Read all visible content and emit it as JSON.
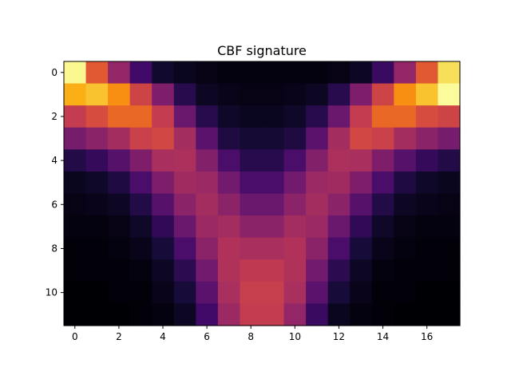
{
  "chart_data": {
    "type": "heatmap",
    "title": "CBF signature",
    "xlabel": "",
    "ylabel": "",
    "colormap": "inferno",
    "value_range": [
      0,
      1
    ],
    "x_ticks": [
      0,
      2,
      4,
      6,
      8,
      10,
      12,
      14,
      16
    ],
    "y_ticks": [
      0,
      2,
      4,
      6,
      8,
      10
    ],
    "x_tick_labels": [
      "0",
      "2",
      "4",
      "6",
      "8",
      "10",
      "12",
      "14",
      "16"
    ],
    "y_tick_labels": [
      "0",
      "2",
      "4",
      "6",
      "8",
      "10"
    ],
    "columns": 18,
    "rows": 12,
    "values": [
      [
        0.98,
        0.62,
        0.4,
        0.2,
        0.08,
        0.05,
        0.03,
        0.02,
        0.02,
        0.02,
        0.02,
        0.02,
        0.03,
        0.06,
        0.18,
        0.4,
        0.62,
        0.92
      ],
      [
        0.82,
        0.86,
        0.75,
        0.55,
        0.35,
        0.14,
        0.06,
        0.04,
        0.03,
        0.03,
        0.04,
        0.06,
        0.14,
        0.35,
        0.55,
        0.75,
        0.86,
        0.99
      ],
      [
        0.52,
        0.58,
        0.66,
        0.66,
        0.52,
        0.3,
        0.14,
        0.07,
        0.05,
        0.05,
        0.07,
        0.14,
        0.3,
        0.52,
        0.66,
        0.66,
        0.58,
        0.55
      ],
      [
        0.33,
        0.38,
        0.44,
        0.54,
        0.56,
        0.44,
        0.26,
        0.12,
        0.09,
        0.09,
        0.12,
        0.26,
        0.44,
        0.56,
        0.54,
        0.44,
        0.38,
        0.33
      ],
      [
        0.13,
        0.17,
        0.25,
        0.35,
        0.45,
        0.46,
        0.36,
        0.22,
        0.14,
        0.14,
        0.22,
        0.36,
        0.46,
        0.45,
        0.35,
        0.25,
        0.17,
        0.13
      ],
      [
        0.05,
        0.07,
        0.12,
        0.22,
        0.35,
        0.43,
        0.42,
        0.32,
        0.22,
        0.22,
        0.32,
        0.42,
        0.43,
        0.35,
        0.22,
        0.12,
        0.07,
        0.05
      ],
      [
        0.03,
        0.04,
        0.06,
        0.13,
        0.25,
        0.38,
        0.44,
        0.38,
        0.3,
        0.3,
        0.38,
        0.44,
        0.38,
        0.25,
        0.13,
        0.06,
        0.04,
        0.03
      ],
      [
        0.02,
        0.02,
        0.03,
        0.07,
        0.16,
        0.3,
        0.42,
        0.44,
        0.38,
        0.38,
        0.44,
        0.42,
        0.3,
        0.16,
        0.07,
        0.03,
        0.02,
        0.02
      ],
      [
        0.01,
        0.01,
        0.02,
        0.04,
        0.1,
        0.22,
        0.38,
        0.47,
        0.45,
        0.45,
        0.47,
        0.38,
        0.22,
        0.1,
        0.04,
        0.02,
        0.01,
        0.01
      ],
      [
        0.01,
        0.01,
        0.01,
        0.02,
        0.06,
        0.15,
        0.32,
        0.47,
        0.51,
        0.51,
        0.47,
        0.32,
        0.15,
        0.06,
        0.02,
        0.01,
        0.01,
        0.01
      ],
      [
        0.0,
        0.0,
        0.01,
        0.01,
        0.04,
        0.1,
        0.26,
        0.45,
        0.53,
        0.53,
        0.45,
        0.26,
        0.1,
        0.04,
        0.01,
        0.01,
        0.0,
        0.0
      ],
      [
        0.0,
        0.0,
        0.0,
        0.01,
        0.02,
        0.06,
        0.2,
        0.42,
        0.52,
        0.52,
        0.4,
        0.18,
        0.05,
        0.02,
        0.01,
        0.0,
        0.0,
        0.0
      ]
    ]
  }
}
